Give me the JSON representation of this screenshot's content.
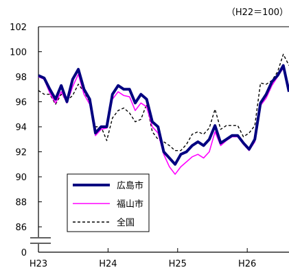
{
  "chart_data": {
    "type": "line",
    "unit_label": "（H22＝100）",
    "y_ticks": [
      "102",
      "100",
      "98",
      "96",
      "94",
      "92",
      "90",
      "88",
      "86",
      "0"
    ],
    "y_tick_values": [
      102,
      100,
      98,
      96,
      94,
      92,
      90,
      88,
      86
    ],
    "y_axis_break": true,
    "ylim": [
      85,
      102
    ],
    "x_ticks": [
      "H23",
      "H24",
      "H25",
      "H26"
    ],
    "x_tick_positions": [
      0,
      10,
      20,
      30
    ],
    "xlim": [
      0,
      36
    ],
    "grid": false,
    "legend_position": "bottom-left-inside",
    "series": [
      {
        "name": "広島市",
        "color": "#000080",
        "style": "solid-thick",
        "values": [
          98.1,
          97.9,
          97.0,
          96.2,
          97.3,
          96.0,
          97.8,
          98.6,
          97.0,
          96.2,
          93.5,
          94.0,
          94.0,
          96.6,
          97.3,
          97.0,
          97.0,
          95.9,
          96.6,
          96.2,
          94.4,
          94.0,
          92.0,
          91.5,
          91.0,
          91.8,
          92.0,
          92.5,
          92.8,
          92.5,
          93.0,
          94.1,
          92.7,
          93.0,
          93.3,
          93.3,
          92.7,
          92.2,
          93.0,
          95.9,
          96.6,
          97.6,
          98.1,
          98.9,
          96.8
        ]
      },
      {
        "name": "福山市",
        "color": "#ff00ff",
        "style": "solid",
        "values": [
          98.0,
          97.8,
          96.7,
          95.9,
          96.8,
          95.9,
          97.2,
          98.2,
          96.6,
          95.8,
          93.3,
          93.8,
          93.9,
          96.2,
          96.8,
          96.5,
          96.4,
          95.3,
          95.9,
          95.6,
          94.0,
          93.5,
          91.8,
          90.8,
          90.2,
          90.8,
          91.2,
          91.6,
          91.8,
          91.5,
          92.0,
          93.6,
          92.5,
          92.9,
          93.2,
          93.2,
          92.6,
          92.1,
          92.8,
          95.7,
          96.3,
          97.3,
          98.0,
          98.7,
          97.2
        ]
      },
      {
        "name": "全国",
        "color": "#000000",
        "style": "dashed",
        "values": [
          96.9,
          96.6,
          96.6,
          95.8,
          96.6,
          96.1,
          96.5,
          97.4,
          96.8,
          96.0,
          94.0,
          94.0,
          92.9,
          94.7,
          95.3,
          95.5,
          95.1,
          94.4,
          94.6,
          95.8,
          93.6,
          93.0,
          92.8,
          92.5,
          92.1,
          92.1,
          92.6,
          93.4,
          93.6,
          93.4,
          93.9,
          95.4,
          93.8,
          94.1,
          94.1,
          94.1,
          93.2,
          93.5,
          94.1,
          97.5,
          97.4,
          97.7,
          98.4,
          99.8,
          98.9
        ]
      }
    ]
  }
}
